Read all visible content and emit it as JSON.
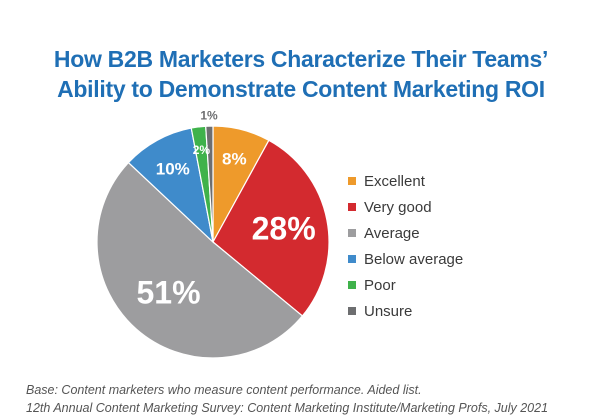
{
  "chart_data": {
    "type": "pie",
    "title_lines": [
      "How B2B Marketers Characterize Their Teams’",
      "Ability to Demonstrate Content Marketing ROI"
    ],
    "categories": [
      "Excellent",
      "Very good",
      "Average",
      "Below average",
      "Poor",
      "Unsure"
    ],
    "values": [
      8,
      28,
      51,
      10,
      2,
      1
    ],
    "value_labels": [
      "8%",
      "28%",
      "51%",
      "10%",
      "2%",
      "1%"
    ],
    "colors": [
      "#ee9a2b",
      "#d32a2f",
      "#9d9d9f",
      "#3f8bcb",
      "#3fb24b",
      "#6d6e70"
    ],
    "legend_position": "right",
    "start_angle": "12 o'clock",
    "direction": "clockwise"
  },
  "footnotes": [
    "Base: Content marketers who measure content performance. Aided list.",
    "12th Annual Content Marketing Survey: Content Marketing Institute/Marketing Profs, July 2021"
  ]
}
